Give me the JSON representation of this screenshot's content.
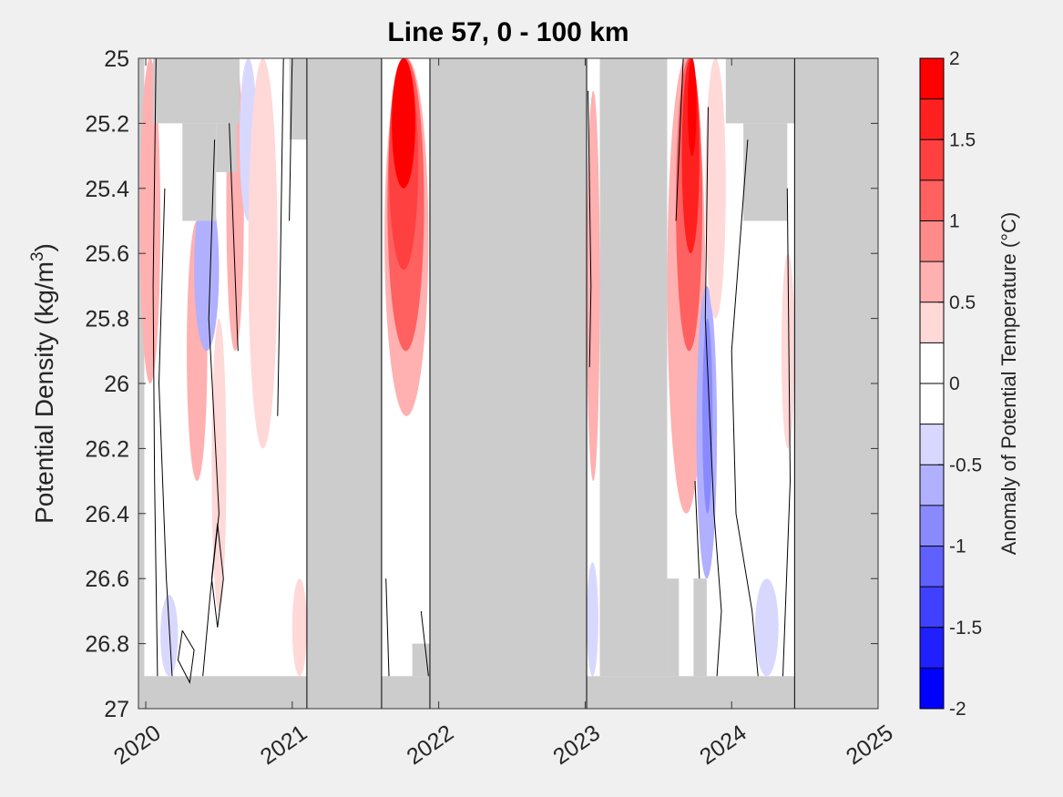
{
  "chart_data": {
    "type": "heatmap",
    "title": "Line 57, 0 - 100 km",
    "ylabel": "Potential Density (kg/m",
    "ylabel_sup": "3",
    "ylabel_close": ")",
    "xlim": [
      2019.95,
      2025
    ],
    "ylim": [
      25,
      27
    ],
    "y_reversed": true,
    "xticks": [
      2020,
      2021,
      2022,
      2023,
      2024,
      2025
    ],
    "xtick_labels": [
      "2020",
      "2021",
      "2022",
      "2023",
      "2024",
      "2025"
    ],
    "yticks": [
      25,
      25.2,
      25.4,
      25.6,
      25.8,
      26,
      26.2,
      26.4,
      26.6,
      26.8,
      27
    ],
    "ytick_labels": [
      "25",
      "25.2",
      "25.4",
      "25.6",
      "25.8",
      "26",
      "26.2",
      "26.4",
      "26.6",
      "26.8",
      "27"
    ],
    "colorbar": {
      "label": "Anomaly of Potential Temperature (°C)",
      "range": [
        -2,
        2
      ],
      "ticks": [
        2,
        1.5,
        1,
        0.5,
        0,
        -0.5,
        -1,
        -1.5,
        -2
      ],
      "tick_labels": [
        "2",
        "1.5",
        "1",
        "0.5",
        "0",
        "-0.5",
        "-1",
        "-1.5",
        "-2"
      ],
      "levels": [
        {
          "range": [
            1.75,
            2
          ],
          "color": "#ff0000"
        },
        {
          "range": [
            1.5,
            1.75
          ],
          "color": "#ff2020"
        },
        {
          "range": [
            1.25,
            1.5
          ],
          "color": "#ff4040"
        },
        {
          "range": [
            1,
            1.25
          ],
          "color": "#ff6060"
        },
        {
          "range": [
            0.75,
            1
          ],
          "color": "#ff8a8a"
        },
        {
          "range": [
            0.5,
            0.75
          ],
          "color": "#ffb0b0"
        },
        {
          "range": [
            0.25,
            0.5
          ],
          "color": "#ffd8d8"
        },
        {
          "range": [
            0,
            0.25
          ],
          "color": "#ffffff"
        },
        {
          "range": [
            -0.25,
            0
          ],
          "color": "#ffffff"
        },
        {
          "range": [
            -0.5,
            -0.25
          ],
          "color": "#d8d8ff"
        },
        {
          "range": [
            -0.75,
            -0.5
          ],
          "color": "#b0b0ff"
        },
        {
          "range": [
            -1,
            -0.75
          ],
          "color": "#8a8aff"
        },
        {
          "range": [
            -1.25,
            -1
          ],
          "color": "#6060ff"
        },
        {
          "range": [
            -1.5,
            -1.25
          ],
          "color": "#4040ff"
        },
        {
          "range": [
            -1.75,
            -1.5
          ],
          "color": "#2020ff"
        },
        {
          "range": [
            -2,
            -1.75
          ],
          "color": "#0000ff"
        }
      ]
    },
    "no_data_color": "#cccccc",
    "data_segments": [
      {
        "x": [
          2019.99,
          2021.1
        ],
        "y": [
          25,
          26.9
        ]
      },
      {
        "x": [
          2021.61,
          2021.94
        ],
        "y": [
          25,
          26.9
        ]
      },
      {
        "x": [
          2023.01,
          2024.43
        ],
        "y": [
          25,
          26.9
        ]
      }
    ],
    "anomalies": [
      {
        "x": [
          2019.96,
          2020.1
        ],
        "y": [
          25,
          26.0
        ],
        "value": 0.6
      },
      {
        "x": [
          2020.28,
          2020.42
        ],
        "y": [
          25.5,
          26.3
        ],
        "value": 0.6
      },
      {
        "x": [
          2020.33,
          2020.5
        ],
        "y": [
          25.4,
          25.9
        ],
        "value": -0.7
      },
      {
        "x": [
          2020.55,
          2020.67
        ],
        "y": [
          25.0,
          25.9
        ],
        "value": 0.5
      },
      {
        "x": [
          2020.64,
          2020.76
        ],
        "y": [
          25.0,
          25.5
        ],
        "value": -0.5
      },
      {
        "x": [
          2020.7,
          2020.9
        ],
        "y": [
          25.0,
          26.2
        ],
        "value": 0.4
      },
      {
        "x": [
          2020.45,
          2020.55
        ],
        "y": [
          25.8,
          26.7
        ],
        "value": 0.3
      },
      {
        "x": [
          2020.1,
          2020.22
        ],
        "y": [
          26.65,
          26.9
        ],
        "value": -0.4
      },
      {
        "x": [
          2021.0,
          2021.1
        ],
        "y": [
          26.6,
          26.9
        ],
        "value": 0.3
      },
      {
        "x": [
          2021.63,
          2021.93
        ],
        "y": [
          25.0,
          26.1
        ],
        "value": 0.6
      },
      {
        "x": [
          2021.65,
          2021.9
        ],
        "y": [
          25.0,
          25.9
        ],
        "value": 1.0
      },
      {
        "x": [
          2021.66,
          2021.86
        ],
        "y": [
          25.0,
          25.65
        ],
        "value": 1.4
      },
      {
        "x": [
          2021.68,
          2021.84
        ],
        "y": [
          25.0,
          25.4
        ],
        "value": 1.9
      },
      {
        "x": [
          2023.01,
          2023.1
        ],
        "y": [
          25.1,
          26.3
        ],
        "value": 0.6
      },
      {
        "x": [
          2023.01,
          2023.09
        ],
        "y": [
          26.55,
          26.9
        ],
        "value": -0.4
      },
      {
        "x": [
          2023.56,
          2023.82
        ],
        "y": [
          25.0,
          26.4
        ],
        "value": 0.6
      },
      {
        "x": [
          2023.62,
          2023.8
        ],
        "y": [
          25.0,
          25.9
        ],
        "value": 1.0
      },
      {
        "x": [
          2023.66,
          2023.78
        ],
        "y": [
          25.0,
          25.6
        ],
        "value": 1.6
      },
      {
        "x": [
          2023.7,
          2023.76
        ],
        "y": [
          25.0,
          25.3
        ],
        "value": 1.9
      },
      {
        "x": [
          2023.76,
          2023.9
        ],
        "y": [
          25.7,
          26.6
        ],
        "value": -0.6
      },
      {
        "x": [
          2023.8,
          2023.87
        ],
        "y": [
          25.8,
          26.4
        ],
        "value": -1.0
      },
      {
        "x": [
          2023.82,
          2023.96
        ],
        "y": [
          25.0,
          25.8
        ],
        "value": 0.3
      },
      {
        "x": [
          2024.16,
          2024.32
        ],
        "y": [
          26.6,
          26.9
        ],
        "value": -0.4
      },
      {
        "x": [
          2024.34,
          2024.43
        ],
        "y": [
          25.6,
          26.2
        ],
        "value": 0.3
      }
    ],
    "nodata_regions": [
      {
        "x": [
          2020.05,
          2020.64
        ],
        "y": [
          25.0,
          25.2
        ]
      },
      {
        "x": [
          2020.25,
          2020.48
        ],
        "y": [
          25.2,
          25.5
        ]
      },
      {
        "x": [
          2020.48,
          2020.62
        ],
        "y": [
          25.2,
          25.35
        ]
      },
      {
        "x": [
          2020.98,
          2021.1
        ],
        "y": [
          25.0,
          25.25
        ]
      },
      {
        "x": [
          2021.82,
          2021.94
        ],
        "y": [
          26.8,
          26.9
        ]
      },
      {
        "x": [
          2023.1,
          2023.56
        ],
        "y": [
          25.0,
          26.9
        ]
      },
      {
        "x": [
          2023.56,
          2023.64
        ],
        "y": [
          26.6,
          26.9
        ]
      },
      {
        "x": [
          2023.74,
          2023.83
        ],
        "y": [
          26.6,
          26.9
        ]
      },
      {
        "x": [
          2023.96,
          2024.43
        ],
        "y": [
          25.0,
          25.2
        ]
      },
      {
        "x": [
          2024.08,
          2024.38
        ],
        "y": [
          25.2,
          25.5
        ]
      }
    ],
    "contour_zero": [
      [
        [
          2020.07,
          25.0
        ],
        [
          2020.05,
          25.7
        ],
        [
          2020.06,
          26.3
        ],
        [
          2020.08,
          26.9
        ]
      ],
      [
        [
          2020.13,
          25.4
        ],
        [
          2020.09,
          26.0
        ],
        [
          2020.14,
          26.6
        ],
        [
          2020.18,
          26.9
        ]
      ],
      [
        [
          2020.47,
          25.25
        ],
        [
          2020.43,
          25.8
        ],
        [
          2020.5,
          26.4
        ],
        [
          2020.44,
          26.65
        ],
        [
          2020.39,
          26.9
        ]
      ],
      [
        [
          2020.57,
          25.2
        ],
        [
          2020.63,
          25.9
        ]
      ],
      [
        [
          2020.94,
          25.0
        ],
        [
          2020.92,
          25.6
        ],
        [
          2020.9,
          26.1
        ]
      ],
      [
        [
          2021.0,
          25.0
        ],
        [
          2020.98,
          25.5
        ]
      ],
      [
        [
          2021.64,
          26.6
        ],
        [
          2021.66,
          26.9
        ]
      ],
      [
        [
          2021.88,
          26.7
        ],
        [
          2021.93,
          26.9
        ]
      ],
      [
        [
          2023.02,
          25.1
        ],
        [
          2023.04,
          25.7
        ],
        [
          2023.03,
          25.95
        ]
      ],
      [
        [
          2023.62,
          25.5
        ],
        [
          2023.67,
          25.0
        ]
      ],
      [
        [
          2023.75,
          26.3
        ],
        [
          2023.78,
          26.6
        ]
      ],
      [
        [
          2023.84,
          25.15
        ],
        [
          2023.82,
          25.8
        ],
        [
          2023.88,
          26.4
        ],
        [
          2023.93,
          26.7
        ],
        [
          2023.9,
          26.9
        ]
      ],
      [
        [
          2024.11,
          25.25
        ],
        [
          2024.0,
          25.9
        ],
        [
          2024.03,
          26.4
        ],
        [
          2024.14,
          26.7
        ],
        [
          2024.18,
          26.9
        ]
      ],
      [
        [
          2024.38,
          25.4
        ],
        [
          2024.4,
          26.3
        ],
        [
          2024.35,
          26.9
        ]
      ]
    ],
    "contour_closed": [
      [
        [
          2020.49,
          26.43
        ],
        [
          2020.53,
          26.6
        ],
        [
          2020.49,
          26.75
        ],
        [
          2020.45,
          26.6
        ],
        [
          2020.49,
          26.43
        ]
      ],
      [
        [
          2020.25,
          26.76
        ],
        [
          2020.33,
          26.82
        ],
        [
          2020.3,
          26.92
        ],
        [
          2020.22,
          26.85
        ],
        [
          2020.25,
          26.76
        ]
      ]
    ]
  }
}
